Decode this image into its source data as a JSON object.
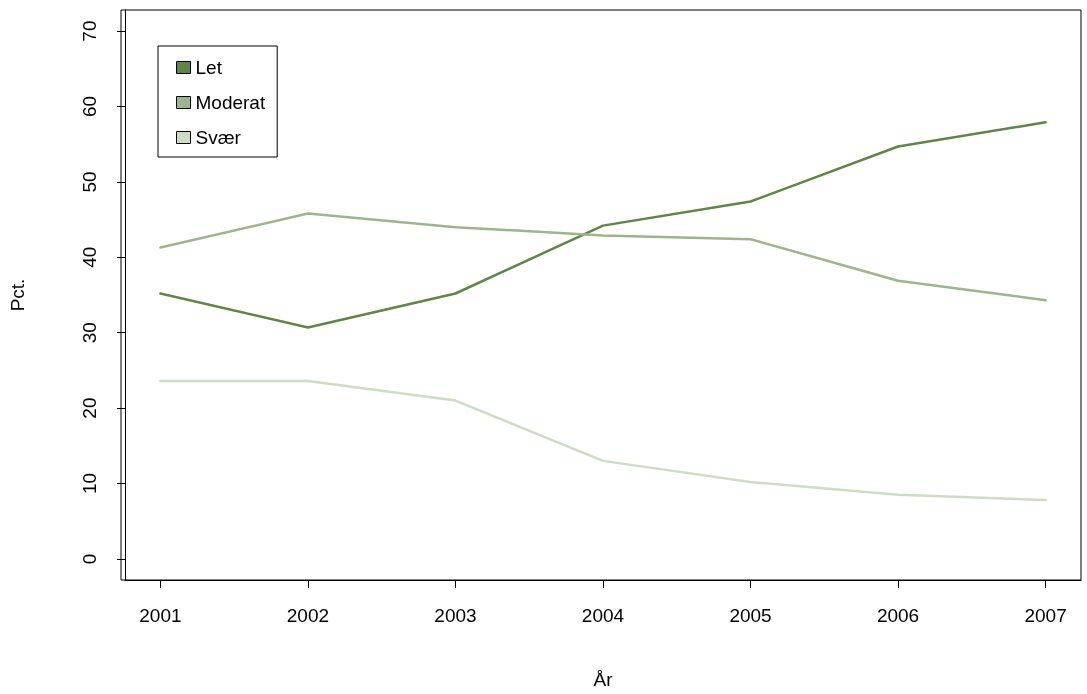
{
  "chart_data": {
    "type": "line",
    "xlabel": "År",
    "ylabel": "Pct.",
    "x": [
      2001,
      2002,
      2003,
      2004,
      2005,
      2006,
      2007
    ],
    "xlim": [
      2000.76,
      2007.24
    ],
    "xticks": [
      2001,
      2002,
      2003,
      2004,
      2005,
      2006,
      2007
    ],
    "ylim": [
      -2.8,
      72.8
    ],
    "yticks": [
      0,
      10,
      20,
      30,
      40,
      50,
      60,
      70
    ],
    "grid": false,
    "legend": "top left",
    "marker": "none",
    "line_style": "solid",
    "series": [
      {
        "name": "Let",
        "color": "#5f8548",
        "values": [
          35.2,
          30.7,
          35.2,
          44.2,
          47.4,
          54.7,
          57.9
        ]
      },
      {
        "name": "Moderat",
        "color": "#9cb58a",
        "values": [
          41.3,
          45.8,
          44.0,
          42.9,
          42.4,
          36.9,
          34.3
        ]
      },
      {
        "name": "Svær",
        "color": "#cfdcc4",
        "values": [
          23.6,
          23.6,
          21.0,
          13.0,
          10.2,
          8.5,
          7.8
        ]
      }
    ]
  }
}
